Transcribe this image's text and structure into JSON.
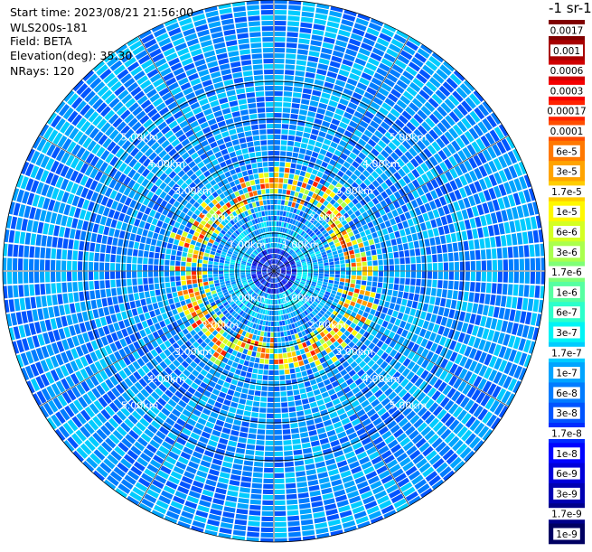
{
  "header": {
    "start_time": "Start time: 2023/08/21 21:56:00",
    "instrument": "WLS200s-181",
    "field": "Field: BETA",
    "elevation": "Elevation(deg): 35.30",
    "nrays": "NRays: 120"
  },
  "colorbar": {
    "title": "-1 sr-1",
    "entries": [
      {
        "label": "0.0017",
        "color": "#800000"
      },
      {
        "label": "0.001",
        "color": "#a80000"
      },
      {
        "label": "0.0006",
        "color": "#d00000"
      },
      {
        "label": "0.0003",
        "color": "#f50000"
      },
      {
        "label": "0.00017",
        "color": "#ff2200"
      },
      {
        "label": "0.0001",
        "color": "#ff4d00"
      },
      {
        "label": "6e-5",
        "color": "#ff7800"
      },
      {
        "label": "3e-5",
        "color": "#ffa300"
      },
      {
        "label": "1.7e-5",
        "color": "#ffcd00"
      },
      {
        "label": "1e-5",
        "color": "#fff800"
      },
      {
        "label": "6e-6",
        "color": "#d4ff23"
      },
      {
        "label": "3e-6",
        "color": "#aaff4d"
      },
      {
        "label": "1.7e-6",
        "color": "#80ff77"
      },
      {
        "label": "1e-6",
        "color": "#56ffa1"
      },
      {
        "label": "6e-7",
        "color": "#2cffcb"
      },
      {
        "label": "3e-7",
        "color": "#00f4f5"
      },
      {
        "label": "1.7e-7",
        "color": "#00ccff"
      },
      {
        "label": "1e-7",
        "color": "#00a4ff"
      },
      {
        "label": "6e-8",
        "color": "#007cff"
      },
      {
        "label": "3e-8",
        "color": "#0054ff"
      },
      {
        "label": "1.7e-8",
        "color": "#002cff"
      },
      {
        "label": "1e-8",
        "color": "#0004ff"
      },
      {
        "label": "6e-9",
        "color": "#0000da"
      },
      {
        "label": "3e-9",
        "color": "#0000b2"
      },
      {
        "label": "1.7e-9",
        "color": "#00008a"
      },
      {
        "label": "1e-9",
        "color": "#000062"
      }
    ]
  },
  "chart_data": {
    "type": "heatmap",
    "projection": "polar-ppi",
    "rays": 120,
    "ring_labels": [
      "1.00km",
      "2.00km",
      "3.00km",
      "4.00km",
      "5.00km"
    ],
    "ring_values_km": [
      1,
      2,
      3,
      4,
      5
    ],
    "max_range_km": 6.25,
    "spoke_count": 12,
    "aerosol_ring": {
      "inner_radius_km": 1.3,
      "outer_radius_km": 2.9,
      "peak_value": "0.0003"
    },
    "background_range": [
      "1e-8",
      "1e-6"
    ]
  }
}
